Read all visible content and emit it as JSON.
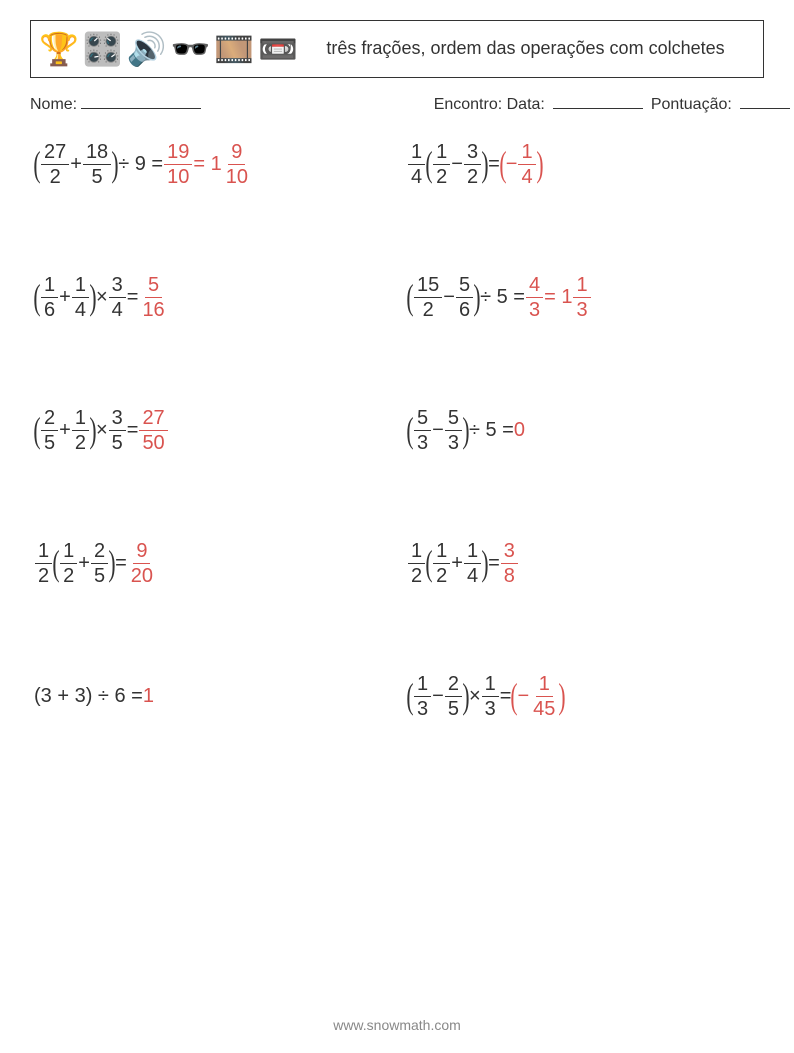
{
  "colors": {
    "text": "#333333",
    "answer": "#d9534f",
    "background": "#ffffff",
    "border": "#333333",
    "footer": "#888888"
  },
  "header": {
    "icons": [
      "🏆",
      "🎛️",
      "🔊",
      "🕶️",
      "🎞️",
      "📼"
    ],
    "title": "três frações, ordem das operações com colchetes"
  },
  "meta": {
    "name_label": "Nome:",
    "name_blank_width": 120,
    "encounter_label": "Encontro: Data:",
    "date_blank_width": 90,
    "score_label": "Pontuação:",
    "score_blank_width": 50
  },
  "typography": {
    "body_fontsize": 20,
    "header_title_fontsize": 18,
    "meta_fontsize": 16,
    "footer_fontsize": 14
  },
  "problems": [
    {
      "expr": [
        {
          "t": "p",
          "v": "("
        },
        {
          "t": "f",
          "n": "27",
          "d": "2"
        },
        {
          "t": "s",
          "v": " + "
        },
        {
          "t": "f",
          "n": "18",
          "d": "5"
        },
        {
          "t": "p",
          "v": ")"
        },
        {
          "t": "s",
          "v": " ÷ 9 = "
        }
      ],
      "ans": [
        {
          "t": "f",
          "n": "19",
          "d": "10"
        },
        {
          "t": "s",
          "v": " = 1"
        },
        {
          "t": "f",
          "n": "9",
          "d": "10"
        }
      ]
    },
    {
      "expr": [
        {
          "t": "f",
          "n": "1",
          "d": "4"
        },
        {
          "t": "p",
          "v": "("
        },
        {
          "t": "f",
          "n": "1",
          "d": "2"
        },
        {
          "t": "s",
          "v": " − "
        },
        {
          "t": "f",
          "n": "3",
          "d": "2"
        },
        {
          "t": "p",
          "v": ")"
        },
        {
          "t": "s",
          "v": " = "
        }
      ],
      "ans": [
        {
          "t": "p",
          "v": "("
        },
        {
          "t": "s",
          "v": "−"
        },
        {
          "t": "f",
          "n": "1",
          "d": "4"
        },
        {
          "t": "p",
          "v": ")"
        }
      ]
    },
    {
      "expr": [
        {
          "t": "p",
          "v": "("
        },
        {
          "t": "f",
          "n": "1",
          "d": "6"
        },
        {
          "t": "s",
          "v": " + "
        },
        {
          "t": "f",
          "n": "1",
          "d": "4"
        },
        {
          "t": "p",
          "v": ")"
        },
        {
          "t": "s",
          "v": " × "
        },
        {
          "t": "f",
          "n": "3",
          "d": "4"
        },
        {
          "t": "s",
          "v": " = "
        }
      ],
      "ans": [
        {
          "t": "f",
          "n": "5",
          "d": "16"
        }
      ]
    },
    {
      "expr": [
        {
          "t": "p",
          "v": "("
        },
        {
          "t": "f",
          "n": "15",
          "d": "2"
        },
        {
          "t": "s",
          "v": " − "
        },
        {
          "t": "f",
          "n": "5",
          "d": "6"
        },
        {
          "t": "p",
          "v": ")"
        },
        {
          "t": "s",
          "v": " ÷ 5 = "
        }
      ],
      "ans": [
        {
          "t": "f",
          "n": "4",
          "d": "3"
        },
        {
          "t": "s",
          "v": " = 1"
        },
        {
          "t": "f",
          "n": "1",
          "d": "3"
        }
      ]
    },
    {
      "expr": [
        {
          "t": "p",
          "v": "("
        },
        {
          "t": "f",
          "n": "2",
          "d": "5"
        },
        {
          "t": "s",
          "v": " + "
        },
        {
          "t": "f",
          "n": "1",
          "d": "2"
        },
        {
          "t": "p",
          "v": ")"
        },
        {
          "t": "s",
          "v": " × "
        },
        {
          "t": "f",
          "n": "3",
          "d": "5"
        },
        {
          "t": "s",
          "v": " = "
        }
      ],
      "ans": [
        {
          "t": "f",
          "n": "27",
          "d": "50"
        }
      ]
    },
    {
      "expr": [
        {
          "t": "p",
          "v": "("
        },
        {
          "t": "f",
          "n": "5",
          "d": "3"
        },
        {
          "t": "s",
          "v": " − "
        },
        {
          "t": "f",
          "n": "5",
          "d": "3"
        },
        {
          "t": "p",
          "v": ")"
        },
        {
          "t": "s",
          "v": " ÷ 5 = "
        }
      ],
      "ans": [
        {
          "t": "s",
          "v": "0"
        }
      ]
    },
    {
      "expr": [
        {
          "t": "f",
          "n": "1",
          "d": "2"
        },
        {
          "t": "p",
          "v": "("
        },
        {
          "t": "f",
          "n": "1",
          "d": "2"
        },
        {
          "t": "s",
          "v": " + "
        },
        {
          "t": "f",
          "n": "2",
          "d": "5"
        },
        {
          "t": "p",
          "v": ")"
        },
        {
          "t": "s",
          "v": " = "
        }
      ],
      "ans": [
        {
          "t": "f",
          "n": "9",
          "d": "20"
        }
      ]
    },
    {
      "expr": [
        {
          "t": "f",
          "n": "1",
          "d": "2"
        },
        {
          "t": "p",
          "v": "("
        },
        {
          "t": "f",
          "n": "1",
          "d": "2"
        },
        {
          "t": "s",
          "v": " + "
        },
        {
          "t": "f",
          "n": "1",
          "d": "4"
        },
        {
          "t": "p",
          "v": ")"
        },
        {
          "t": "s",
          "v": " = "
        }
      ],
      "ans": [
        {
          "t": "f",
          "n": "3",
          "d": "8"
        }
      ]
    },
    {
      "expr": [
        {
          "t": "s",
          "v": "(3 + 3) ÷ 6 = "
        }
      ],
      "ans": [
        {
          "t": "s",
          "v": "1"
        }
      ]
    },
    {
      "expr": [
        {
          "t": "p",
          "v": "("
        },
        {
          "t": "f",
          "n": "1",
          "d": "3"
        },
        {
          "t": "s",
          "v": " − "
        },
        {
          "t": "f",
          "n": "2",
          "d": "5"
        },
        {
          "t": "p",
          "v": ")"
        },
        {
          "t": "s",
          "v": " × "
        },
        {
          "t": "f",
          "n": "1",
          "d": "3"
        },
        {
          "t": "s",
          "v": " = "
        }
      ],
      "ans": [
        {
          "t": "p",
          "v": "("
        },
        {
          "t": "s",
          "v": "−"
        },
        {
          "t": "f",
          "n": "1",
          "d": "45"
        },
        {
          "t": "p",
          "v": ")"
        }
      ]
    }
  ],
  "footer": "www.snowmath.com"
}
